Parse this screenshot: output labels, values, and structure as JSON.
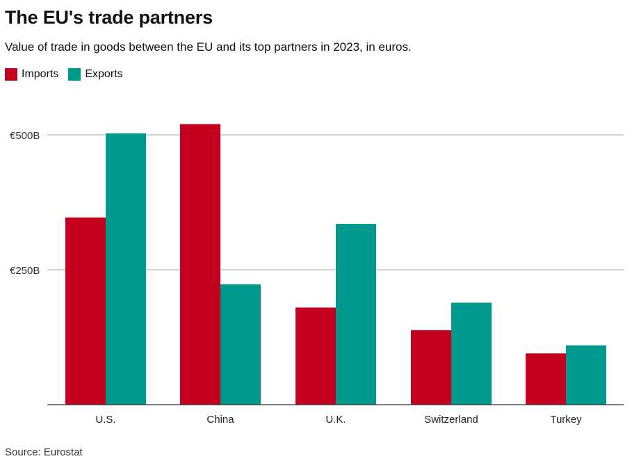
{
  "header": {
    "title": "The EU's trade partners",
    "subtitle": "Value of trade in goods between the EU and its top partners in 2023, in euros."
  },
  "legend": {
    "imports_label": "Imports",
    "exports_label": "Exports"
  },
  "footer": {
    "source": "Source: Eurostat"
  },
  "colors": {
    "imports": "#c4001f",
    "exports": "#00988c",
    "grid": "#aaaaaa",
    "axis": "#333333"
  },
  "chart_data": {
    "type": "bar",
    "categories": [
      "U.S.",
      "China",
      "U.K.",
      "Switzerland",
      "Turkey"
    ],
    "series": [
      {
        "name": "Imports",
        "values": [
          347,
          520,
          180,
          138,
          95
        ]
      },
      {
        "name": "Exports",
        "values": [
          503,
          223,
          335,
          189,
          110
        ]
      }
    ],
    "ylim": [
      0,
      560
    ],
    "yticks": [
      250,
      500
    ],
    "ytick_labels": [
      "€250B",
      "€500B"
    ],
    "grid": true,
    "legend_position": "top-left"
  }
}
